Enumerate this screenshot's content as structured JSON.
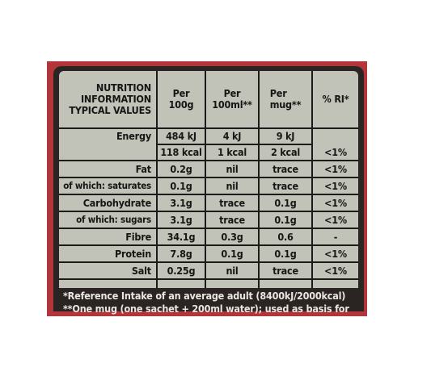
{
  "header": {
    "label": "NUTRITION INFORMATION TYPICAL VALUES",
    "label_lines": [
      "NUTRITION",
      "INFORMATION",
      "TYPICAL VALUES"
    ],
    "col_per100g": [
      "Per",
      "100g"
    ],
    "col_per100ml": [
      "Per",
      "100ml**"
    ],
    "col_permug": [
      "Per",
      "mug**"
    ],
    "col_ri": "% RI*"
  },
  "energy": {
    "label": "Energy",
    "kj": [
      "484 kJ",
      "4 kJ",
      "9 kJ"
    ],
    "kcal": [
      "118 kcal",
      "1 kcal",
      "2 kcal"
    ],
    "ri": "<1%"
  },
  "rows": [
    {
      "label": "Fat",
      "per100g": "0.2g",
      "per100ml": "nil",
      "permug": "trace",
      "ri": "<1%"
    },
    {
      "label": "of which: saturates",
      "per100g": "0.1g",
      "per100ml": "nil",
      "permug": "trace",
      "ri": "<1%"
    },
    {
      "label": "Carbohydrate",
      "per100g": "3.1g",
      "per100ml": "trace",
      "permug": "0.1g",
      "ri": "<1%"
    },
    {
      "label": "of which: sugars",
      "per100g": "3.1g",
      "per100ml": "trace",
      "permug": "0.1g",
      "ri": "<1%"
    },
    {
      "label": "Fibre",
      "per100g": "34.1g",
      "per100ml": "0.3g",
      "permug": "0.6",
      "ri": "-"
    },
    {
      "label": "Protein",
      "per100g": "7.8g",
      "per100ml": "0.1g",
      "permug": "0.1g",
      "ri": "<1%"
    },
    {
      "label": "Salt",
      "per100g": "0.25g",
      "per100ml": "nil",
      "permug": "trace",
      "ri": "<1%"
    }
  ],
  "footnotes": [
    "*Reference Intake of an average adult (8400kJ/2000kcal)",
    "**One mug (one sachet + 200ml water); used as basis for"
  ],
  "colors": {
    "background": "#ffffff",
    "packaging_red": "#b3353c",
    "panel_dark": "#2a2523",
    "table_fill": "#c1c2b8",
    "text_dark": "#171615",
    "footnote_text": "#e9e6df"
  }
}
